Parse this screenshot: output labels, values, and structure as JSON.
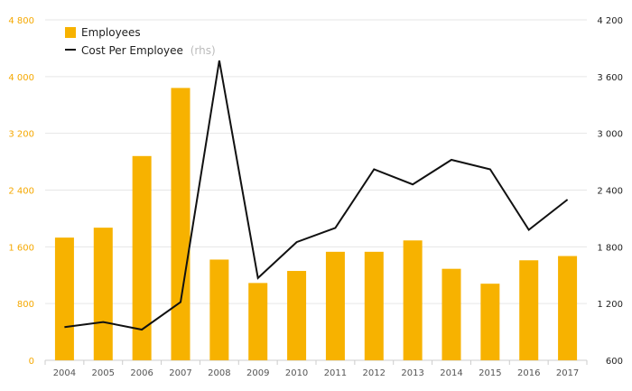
{
  "chart_data": {
    "type": "bar",
    "categories": [
      "2004",
      "2005",
      "2006",
      "2007",
      "2008",
      "2009",
      "2010",
      "2011",
      "2012",
      "2013",
      "2014",
      "2015",
      "2016",
      "2017"
    ],
    "series": [
      {
        "name": "Employees",
        "type": "bar",
        "axis": "left",
        "color": "#f7b200",
        "values": [
          1730,
          1870,
          2880,
          3840,
          1420,
          1090,
          1260,
          1530,
          1530,
          1690,
          1290,
          1080,
          1410,
          1470
        ]
      },
      {
        "name": "Cost Per Employee",
        "legend_suffix": "(rhs)",
        "type": "line",
        "axis": "right",
        "color": "#111111",
        "values": [
          950,
          1005,
          925,
          1215,
          3770,
          1470,
          1850,
          2000,
          2620,
          2460,
          2720,
          2620,
          1980,
          2300
        ]
      }
    ],
    "y_left": {
      "min": 0,
      "max": 4800,
      "ticks": [
        "0",
        "800",
        "1 600",
        "2 400",
        "3 200",
        "4 000",
        "4 800"
      ],
      "color": "#f5a800"
    },
    "y_right": {
      "min": 600,
      "max": 4200,
      "ticks": [
        "600",
        "1 200",
        "1 800",
        "2 400",
        "3 000",
        "3 600",
        "4 200"
      ]
    },
    "grid": true,
    "legend_position": "top-left"
  }
}
